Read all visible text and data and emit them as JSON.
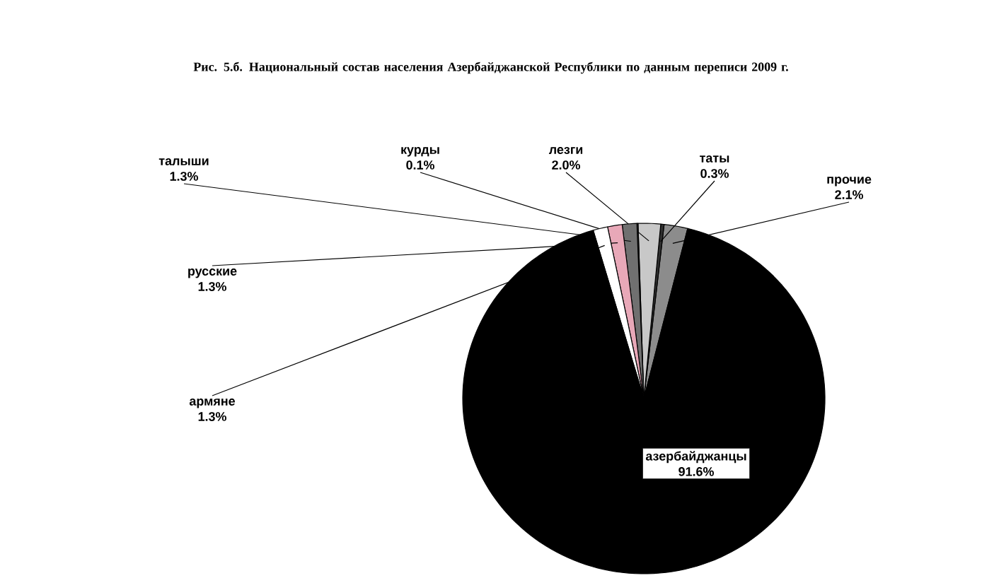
{
  "chart_data": {
    "type": "pie",
    "title": "Рис. 5.б. Национальный состав населения Азербайджанской Республики по данным переписи 2009 г.",
    "categories": [
      "прочие",
      "таты",
      "лезги",
      "курды",
      "талыши",
      "русские",
      "армяне",
      "азербайджанцы"
    ],
    "values": [
      2.1,
      0.3,
      2.0,
      0.1,
      1.3,
      1.3,
      1.3,
      91.6
    ],
    "value_labels": [
      "2.1%",
      "0.3%",
      "2.0%",
      "0.1%",
      "1.3%",
      "1.3%",
      "1.3%",
      "91.6%"
    ],
    "colors": [
      "#8c8c8c",
      "#303030",
      "#c8c8c8",
      "#505050",
      "#707070",
      "#e8a8b8",
      "#ffffff",
      "#000000"
    ]
  }
}
